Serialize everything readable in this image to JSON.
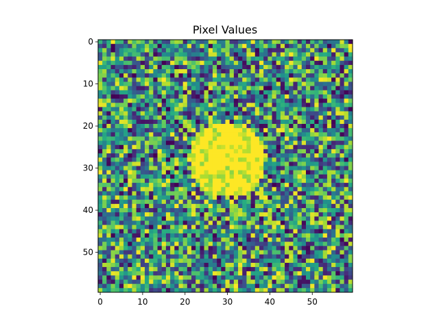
{
  "chart_data": {
    "type": "heatmap",
    "title": "Pixel Values",
    "xlabel": "",
    "ylabel": "",
    "colormap": "viridis",
    "grid": false,
    "legend": "none",
    "rows": 60,
    "cols": 60,
    "x_range": [
      0,
      59
    ],
    "y_range": [
      0,
      59
    ],
    "y_axis_inverted": true,
    "value_range": [
      0,
      1
    ],
    "xticks": [
      0,
      10,
      20,
      30,
      40,
      50
    ],
    "yticks": [
      0,
      10,
      20,
      30,
      40,
      50
    ],
    "feature": {
      "shape": "disk",
      "center_col": 30,
      "center_row": 28,
      "radius": 9,
      "value": 1.0
    },
    "background_noise": "random uniform values across the full color range"
  },
  "colors": {
    "viridis_low": "#440154",
    "viridis_mid": "#21918c",
    "viridis_high": "#fde725",
    "axis": "#000000"
  }
}
